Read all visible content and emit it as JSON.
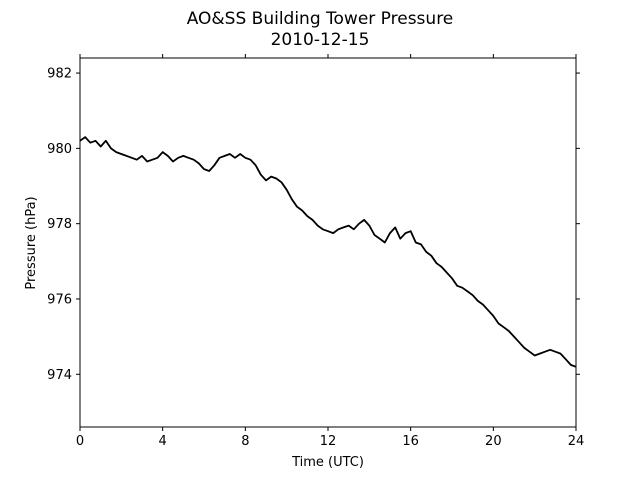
{
  "chart_data": {
    "type": "line",
    "title": "AO&SS Building Tower Pressure",
    "subtitle": "2010-12-15",
    "xlabel": "Time (UTC)",
    "ylabel": "Pressure (hPa)",
    "xlim": [
      0,
      24
    ],
    "ylim": [
      972.6,
      982.4
    ],
    "xticks": [
      0,
      4,
      8,
      12,
      16,
      20,
      24
    ],
    "xtick_labels": [
      "0",
      "4",
      "8",
      "12",
      "16",
      "20",
      "24"
    ],
    "yticks": [
      974,
      976,
      978,
      980,
      982
    ],
    "ytick_labels": [
      "974",
      "976",
      "978",
      "980",
      "982"
    ],
    "grid": false,
    "line_color": "#000000",
    "series": [
      {
        "x": [
          0,
          0.25,
          0.5,
          0.75,
          1,
          1.25,
          1.5,
          1.75,
          2,
          2.25,
          2.5,
          2.75,
          3,
          3.25,
          3.5,
          3.75,
          4,
          4.25,
          4.5,
          4.75,
          5,
          5.25,
          5.5,
          5.75,
          6,
          6.25,
          6.5,
          6.75,
          7,
          7.25,
          7.5,
          7.75,
          8,
          8.25,
          8.5,
          8.75,
          9,
          9.25,
          9.5,
          9.75,
          10,
          10.25,
          10.5,
          10.75,
          11,
          11.25,
          11.5,
          11.75,
          12,
          12.25,
          12.5,
          12.75,
          13,
          13.25,
          13.5,
          13.75,
          14,
          14.25,
          14.5,
          14.75,
          15,
          15.25,
          15.5,
          15.75,
          16,
          16.25,
          16.5,
          16.75,
          17,
          17.25,
          17.5,
          17.75,
          18,
          18.25,
          18.5,
          18.75,
          19,
          19.25,
          19.5,
          19.75,
          20,
          20.25,
          20.5,
          20.75,
          21,
          21.25,
          21.5,
          21.75,
          22,
          22.25,
          22.5,
          22.75,
          23,
          23.25,
          23.5,
          23.75,
          24
        ],
        "y": [
          980.2,
          980.3,
          980.15,
          980.2,
          980.05,
          980.2,
          980.0,
          979.9,
          979.85,
          979.8,
          979.75,
          979.7,
          979.8,
          979.65,
          979.7,
          979.75,
          979.9,
          979.8,
          979.65,
          979.75,
          979.8,
          979.75,
          979.7,
          979.6,
          979.45,
          979.4,
          979.55,
          979.75,
          979.8,
          979.85,
          979.75,
          979.85,
          979.75,
          979.7,
          979.55,
          979.3,
          979.15,
          979.25,
          979.2,
          979.1,
          978.9,
          978.65,
          978.45,
          978.35,
          978.2,
          978.1,
          977.95,
          977.85,
          977.8,
          977.75,
          977.85,
          977.9,
          977.95,
          977.85,
          978.0,
          978.1,
          977.95,
          977.7,
          977.6,
          977.5,
          977.75,
          977.9,
          977.6,
          977.75,
          977.8,
          977.5,
          977.45,
          977.25,
          977.15,
          976.95,
          976.85,
          976.7,
          976.55,
          976.35,
          976.3,
          976.2,
          976.1,
          975.95,
          975.85,
          975.7,
          975.55,
          975.35,
          975.25,
          975.15,
          975.0,
          974.85,
          974.7,
          974.6,
          974.5,
          974.55,
          974.6,
          974.65,
          974.6,
          974.55,
          974.4,
          974.25,
          974.2
        ]
      }
    ]
  }
}
